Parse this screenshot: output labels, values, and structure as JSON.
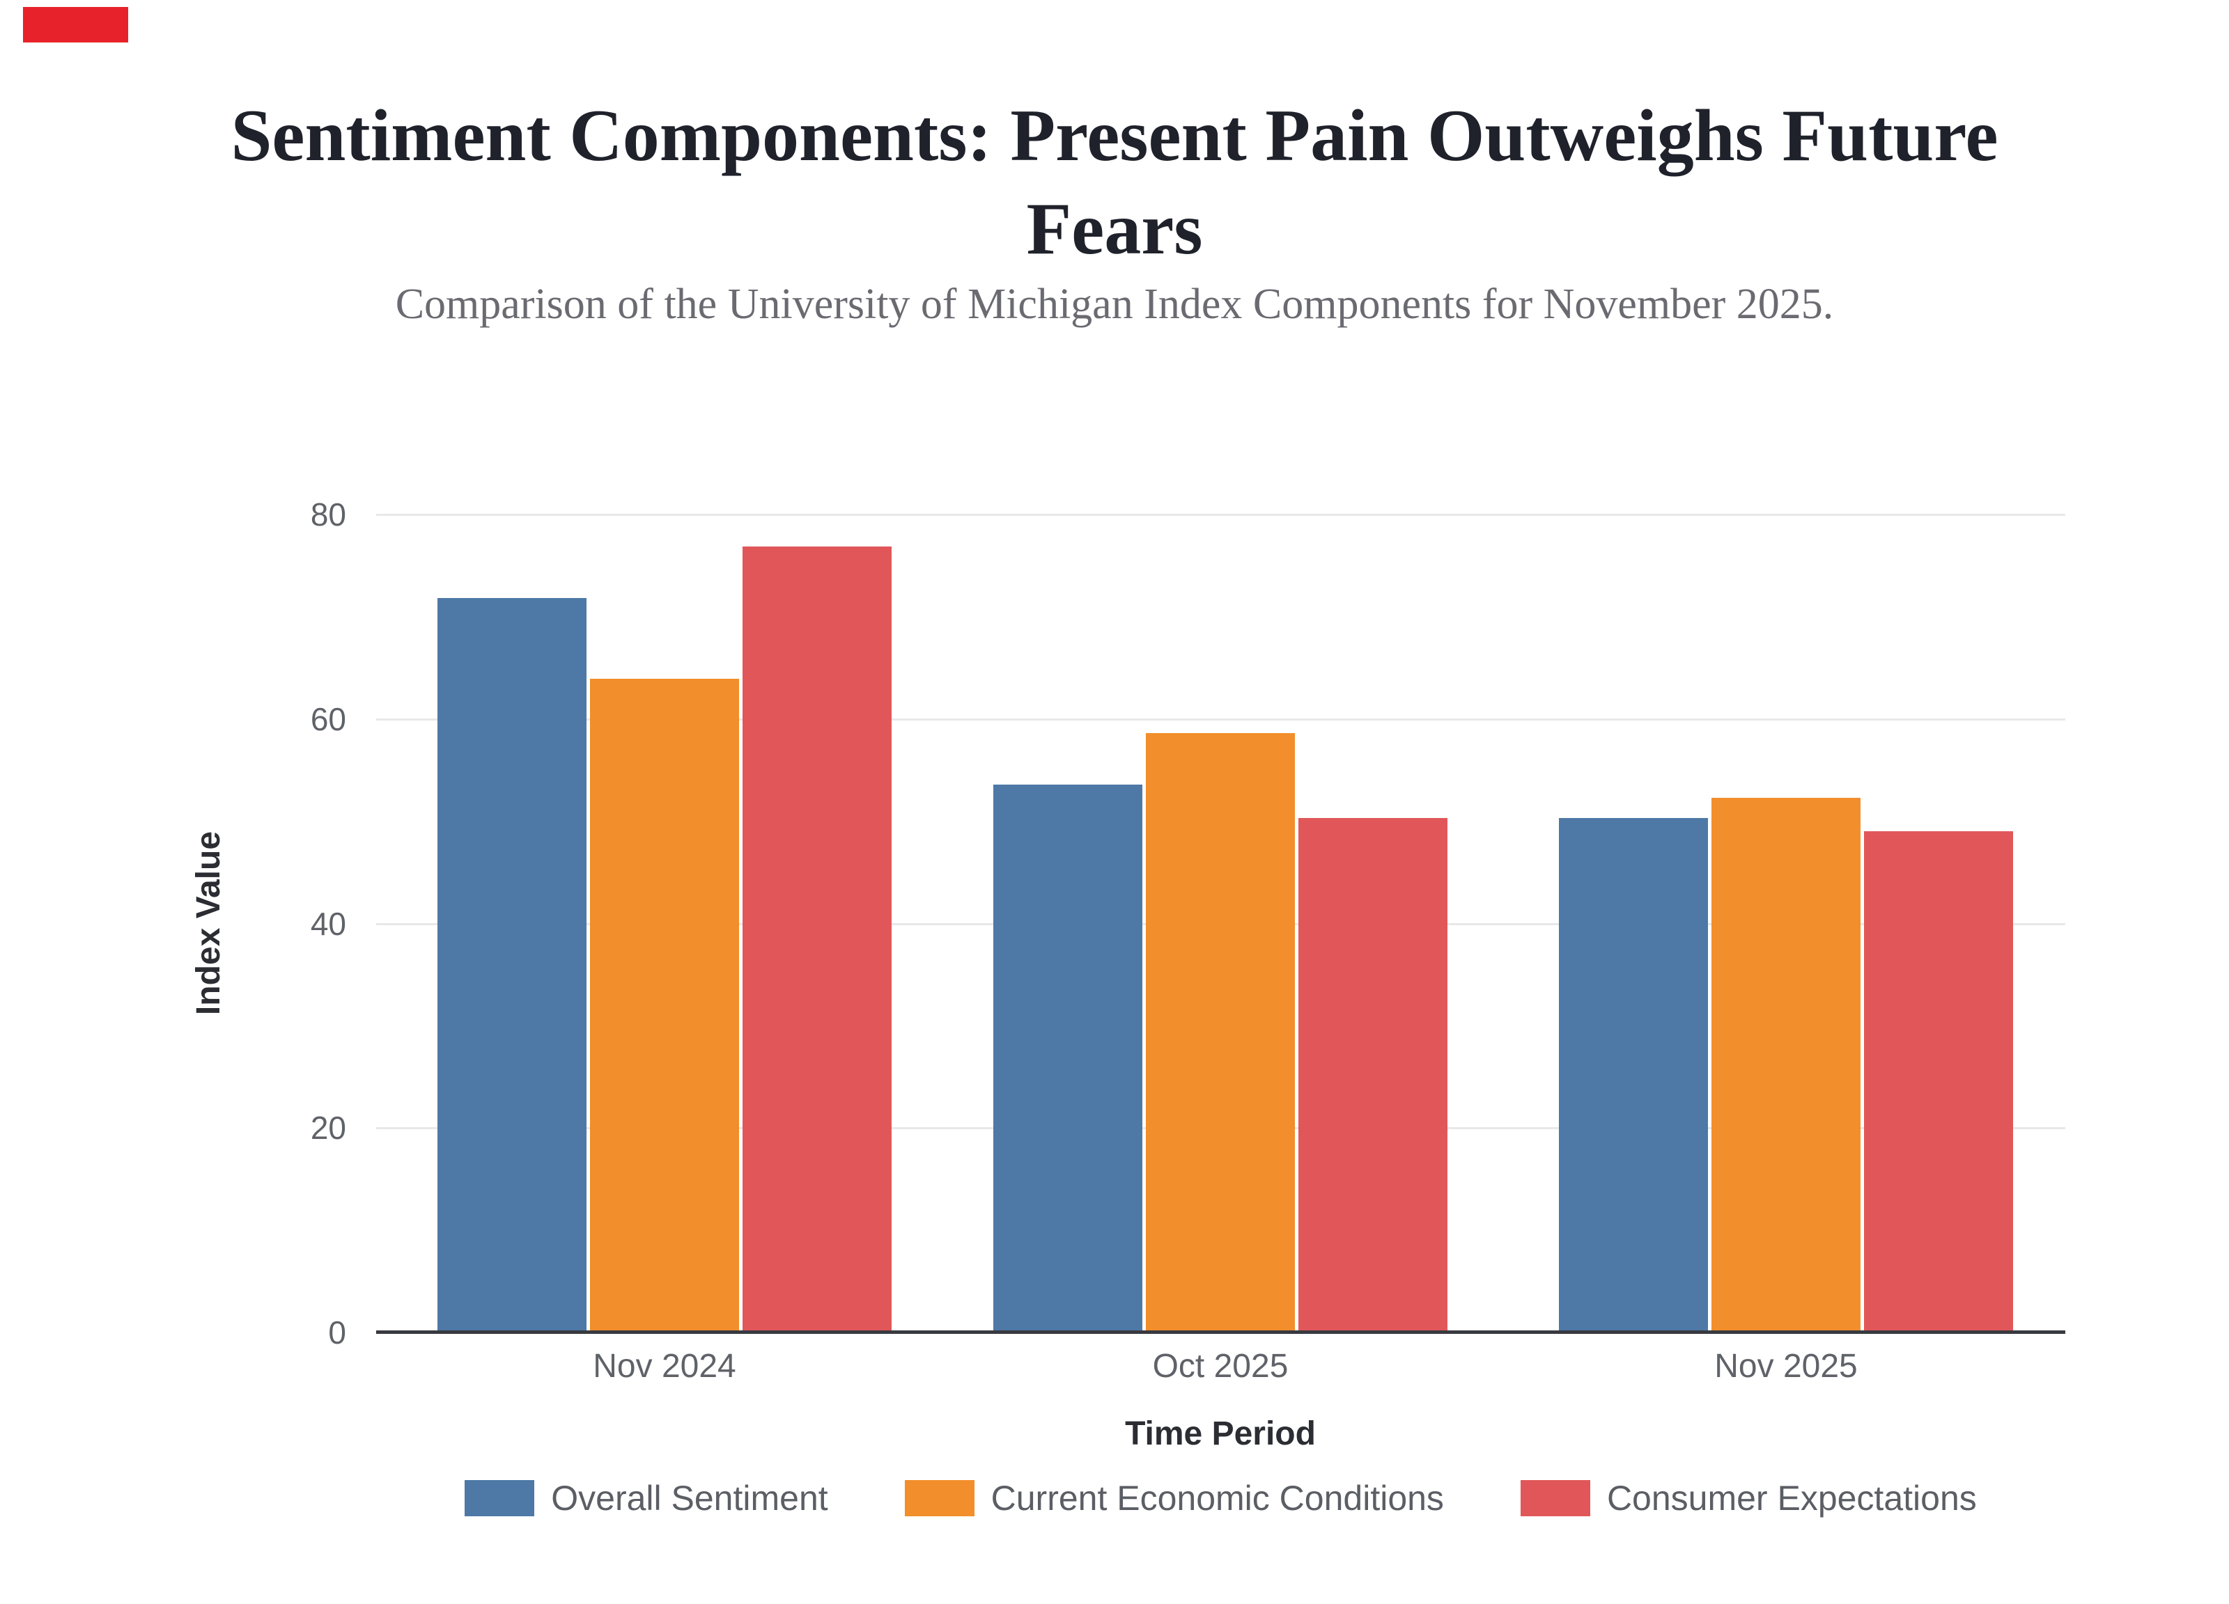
{
  "page": {
    "background": "#ffffff"
  },
  "corner_marker": {
    "color": "#e8222a"
  },
  "header": {
    "title_line1": "Sentiment Components: Present Pain Outweighs Future",
    "title_line2": "Fears",
    "subtitle": "Comparison of the University of Michigan Index Components for November 2025.",
    "title_color": "#1f222b",
    "subtitle_color": "#6a6a71"
  },
  "chart_data": {
    "type": "bar",
    "title": "Sentiment Components: Present Pain Outweighs Future Fears",
    "subtitle": "Comparison of the University of Michigan Index Components for November 2025.",
    "categories": [
      "Nov 2024",
      "Oct 2025",
      "Nov 2025"
    ],
    "series": [
      {
        "name": "Overall Sentiment",
        "color": "#4e79a7",
        "values": [
          71.8,
          53.6,
          50.3
        ]
      },
      {
        "name": "Current Economic Conditions",
        "color": "#f28e2b",
        "values": [
          63.9,
          58.6,
          52.3
        ]
      },
      {
        "name": "Consumer Expectations",
        "color": "#e15759",
        "values": [
          76.9,
          50.3,
          49.0
        ]
      }
    ],
    "xlabel": "Time Period",
    "ylabel": "Index Value",
    "ylim": [
      0,
      80
    ],
    "yticks": [
      0,
      20,
      40,
      60,
      80
    ],
    "grid": true,
    "legend_position": "bottom"
  },
  "style_colors": {
    "tick_label": "#5f6268",
    "axis_title": "#2b2d33",
    "axis_line": "#383a40",
    "gridline": "#e8e8ea",
    "legend_text": "#5b5e64"
  }
}
